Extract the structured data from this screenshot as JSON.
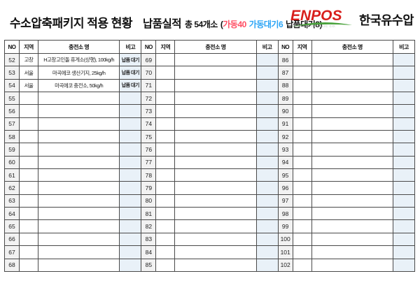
{
  "header": {
    "title": "수소압축패키지 적용 현황",
    "performance_label": "납품실적",
    "total": "총 54개소",
    "stat_open": "(",
    "stat_operating": "가동40",
    "stat_operating_wait": "가동대기6",
    "stat_delivery_wait": "납품대기8",
    "stat_close": ")",
    "colors": {
      "operating": "#ff4d63",
      "operating_wait": "#2ba4f5",
      "text": "#111111"
    }
  },
  "logo": {
    "brand": "ENPOS",
    "tagline": "KOREA HYDRAULIC CO.",
    "company": "한국유수압",
    "brand_color": "#d81f1c",
    "arc_color": "#4aa23c"
  },
  "table": {
    "columns": [
      "NO",
      "지역",
      "충전소 명",
      "비고"
    ],
    "blocks": [
      {
        "rows": [
          {
            "no": "52",
            "region": "고창",
            "name": "H고창고인돌 휴게소(상행), 100kg/h",
            "note": "납품 대기"
          },
          {
            "no": "53",
            "region": "서울",
            "name": "마곡에코 생산기지, 25kg/h",
            "note": "납품 대기"
          },
          {
            "no": "54",
            "region": "서울",
            "name": "마곡에코 충전소, 50kg/h",
            "note": "납품 대기"
          },
          {
            "no": "55",
            "region": "",
            "name": "",
            "note": ""
          },
          {
            "no": "56",
            "region": "",
            "name": "",
            "note": ""
          },
          {
            "no": "57",
            "region": "",
            "name": "",
            "note": ""
          },
          {
            "no": "58",
            "region": "",
            "name": "",
            "note": ""
          },
          {
            "no": "59",
            "region": "",
            "name": "",
            "note": ""
          },
          {
            "no": "60",
            "region": "",
            "name": "",
            "note": ""
          },
          {
            "no": "61",
            "region": "",
            "name": "",
            "note": ""
          },
          {
            "no": "62",
            "region": "",
            "name": "",
            "note": ""
          },
          {
            "no": "63",
            "region": "",
            "name": "",
            "note": ""
          },
          {
            "no": "64",
            "region": "",
            "name": "",
            "note": ""
          },
          {
            "no": "65",
            "region": "",
            "name": "",
            "note": ""
          },
          {
            "no": "66",
            "region": "",
            "name": "",
            "note": ""
          },
          {
            "no": "67",
            "region": "",
            "name": "",
            "note": ""
          },
          {
            "no": "68",
            "region": "",
            "name": "",
            "note": ""
          }
        ]
      },
      {
        "rows": [
          {
            "no": "69",
            "region": "",
            "name": "",
            "note": ""
          },
          {
            "no": "70",
            "region": "",
            "name": "",
            "note": ""
          },
          {
            "no": "71",
            "region": "",
            "name": "",
            "note": ""
          },
          {
            "no": "72",
            "region": "",
            "name": "",
            "note": ""
          },
          {
            "no": "73",
            "region": "",
            "name": "",
            "note": ""
          },
          {
            "no": "74",
            "region": "",
            "name": "",
            "note": ""
          },
          {
            "no": "75",
            "region": "",
            "name": "",
            "note": ""
          },
          {
            "no": "76",
            "region": "",
            "name": "",
            "note": ""
          },
          {
            "no": "77",
            "region": "",
            "name": "",
            "note": ""
          },
          {
            "no": "78",
            "region": "",
            "name": "",
            "note": ""
          },
          {
            "no": "79",
            "region": "",
            "name": "",
            "note": ""
          },
          {
            "no": "80",
            "region": "",
            "name": "",
            "note": ""
          },
          {
            "no": "81",
            "region": "",
            "name": "",
            "note": ""
          },
          {
            "no": "82",
            "region": "",
            "name": "",
            "note": ""
          },
          {
            "no": "83",
            "region": "",
            "name": "",
            "note": ""
          },
          {
            "no": "84",
            "region": "",
            "name": "",
            "note": ""
          },
          {
            "no": "85",
            "region": "",
            "name": "",
            "note": ""
          }
        ]
      },
      {
        "rows": [
          {
            "no": "86",
            "region": "",
            "name": "",
            "note": ""
          },
          {
            "no": "87",
            "region": "",
            "name": "",
            "note": ""
          },
          {
            "no": "88",
            "region": "",
            "name": "",
            "note": ""
          },
          {
            "no": "89",
            "region": "",
            "name": "",
            "note": ""
          },
          {
            "no": "90",
            "region": "",
            "name": "",
            "note": ""
          },
          {
            "no": "91",
            "region": "",
            "name": "",
            "note": ""
          },
          {
            "no": "92",
            "region": "",
            "name": "",
            "note": ""
          },
          {
            "no": "93",
            "region": "",
            "name": "",
            "note": ""
          },
          {
            "no": "94",
            "region": "",
            "name": "",
            "note": ""
          },
          {
            "no": "95",
            "region": "",
            "name": "",
            "note": ""
          },
          {
            "no": "96",
            "region": "",
            "name": "",
            "note": ""
          },
          {
            "no": "97",
            "region": "",
            "name": "",
            "note": ""
          },
          {
            "no": "98",
            "region": "",
            "name": "",
            "note": ""
          },
          {
            "no": "99",
            "region": "",
            "name": "",
            "note": ""
          },
          {
            "no": "100",
            "region": "",
            "name": "",
            "note": ""
          },
          {
            "no": "101",
            "region": "",
            "name": "",
            "note": ""
          },
          {
            "no": "102",
            "region": "",
            "name": "",
            "note": ""
          }
        ]
      }
    ]
  }
}
